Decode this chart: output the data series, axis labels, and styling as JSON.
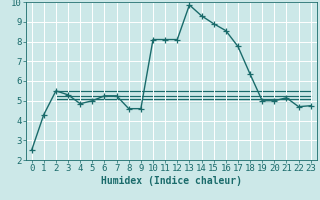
{
  "title": "",
  "xlabel": "Humidex (Indice chaleur)",
  "ylabel": "",
  "background_color": "#cce8e8",
  "grid_color": "#ffffff",
  "line_color": "#1a6b6b",
  "xlim": [
    -0.5,
    23.5
  ],
  "ylim": [
    2,
    10
  ],
  "xticks": [
    0,
    1,
    2,
    3,
    4,
    5,
    6,
    7,
    8,
    9,
    10,
    11,
    12,
    13,
    14,
    15,
    16,
    17,
    18,
    19,
    20,
    21,
    22,
    23
  ],
  "yticks": [
    2,
    3,
    4,
    5,
    6,
    7,
    8,
    9,
    10
  ],
  "series": [
    [
      0,
      2.5
    ],
    [
      1,
      4.3
    ],
    [
      2,
      5.5
    ],
    [
      3,
      5.3
    ],
    [
      4,
      4.85
    ],
    [
      5,
      5.0
    ],
    [
      6,
      5.25
    ],
    [
      7,
      5.25
    ],
    [
      8,
      4.6
    ],
    [
      9,
      4.6
    ],
    [
      10,
      8.1
    ],
    [
      11,
      8.1
    ],
    [
      12,
      8.1
    ],
    [
      13,
      9.85
    ],
    [
      14,
      9.3
    ],
    [
      15,
      8.9
    ],
    [
      16,
      8.55
    ],
    [
      17,
      7.75
    ],
    [
      18,
      6.35
    ],
    [
      19,
      5.0
    ],
    [
      20,
      5.0
    ],
    [
      21,
      5.15
    ],
    [
      22,
      4.7
    ],
    [
      23,
      4.75
    ]
  ],
  "flat_series": [
    {
      "x_start": 2,
      "x_end": 23,
      "y": 5.5
    },
    {
      "x_start": 2,
      "x_end": 23,
      "y": 5.25
    },
    {
      "x_start": 2,
      "x_end": 23,
      "y": 5.1
    },
    {
      "x_start": 2,
      "x_end": 23,
      "y": 5.0
    }
  ],
  "marker_size": 4,
  "line_width": 1.0,
  "font_size_xlabel": 7,
  "tick_font_size": 6.5
}
